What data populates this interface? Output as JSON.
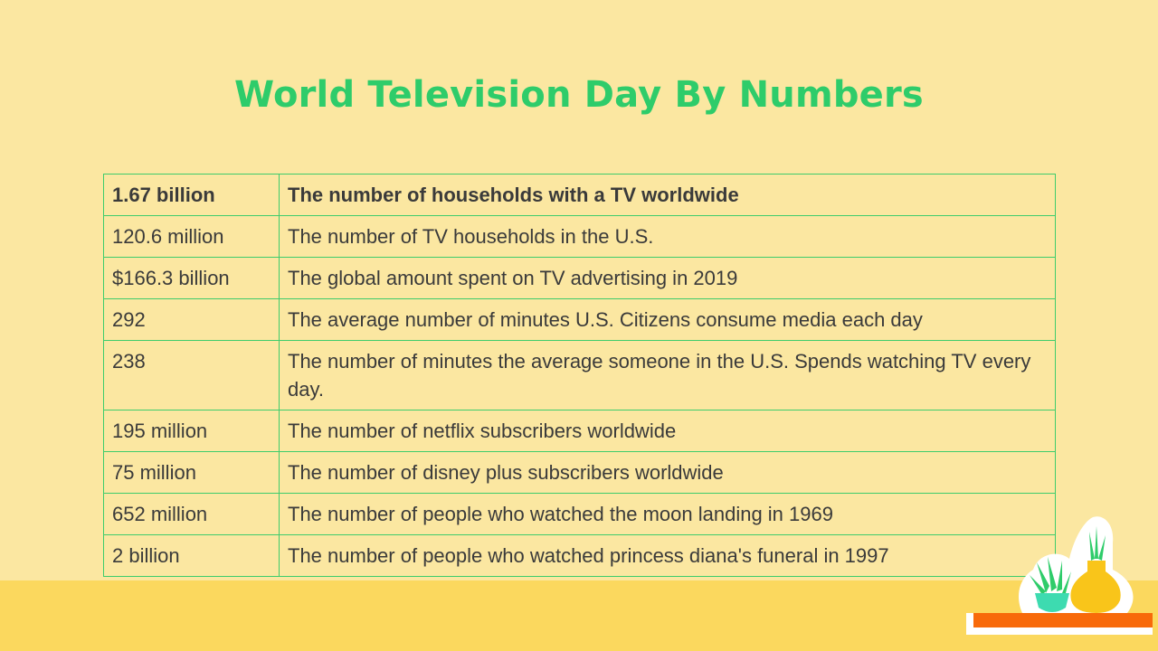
{
  "title": "World Television Day By Numbers",
  "colors": {
    "background": "#fbe7a1",
    "title": "#2ecc6a",
    "table_border": "#3ecc6c",
    "floor": "#fbd85e",
    "shelf": "#f86a0a"
  },
  "table": {
    "rows": [
      {
        "value": "1.67 billion",
        "description": "The number of households with a TV worldwide"
      },
      {
        "value": "120.6 million",
        "description": "The number of TV households in the U.S."
      },
      {
        "value": "$166.3 billion",
        "description": "The global amount spent on TV advertising in 2019"
      },
      {
        "value": "292",
        "description": "The average number of minutes U.S. Citizens consume media each day"
      },
      {
        "value": "238",
        "description": "The number of minutes the average someone in the U.S. Spends watching TV every day."
      },
      {
        "value": "195 million",
        "description": "The number of netflix subscribers worldwide"
      },
      {
        "value": "75 million",
        "description": "The number of disney plus subscribers worldwide"
      },
      {
        "value": "652 million",
        "description": "The number of people who watched the moon landing in 1969"
      },
      {
        "value": "2 billion",
        "description": "The number of people who watched princess diana's funeral in 1997"
      }
    ]
  },
  "decoration_icons": [
    "succulent-plant-icon",
    "vase-plant-icon",
    "shelf-icon"
  ]
}
